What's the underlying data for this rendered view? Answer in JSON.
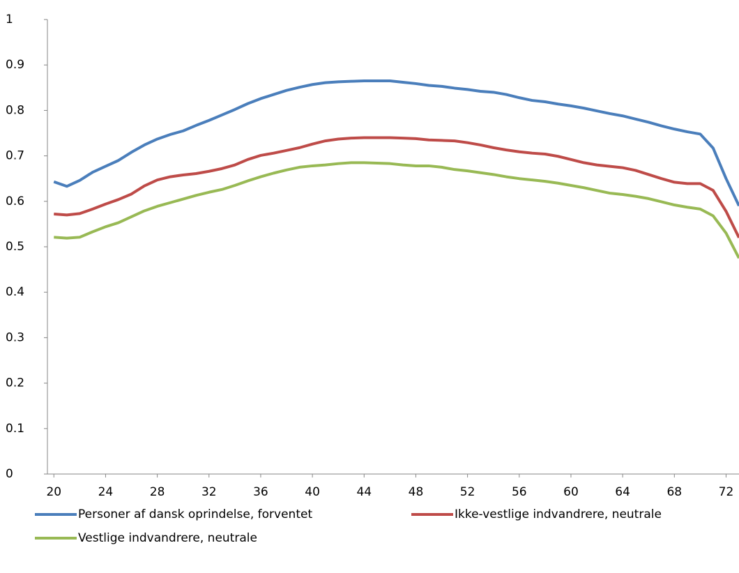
{
  "chart_data": {
    "type": "line",
    "x": [
      20,
      21,
      22,
      23,
      24,
      25,
      26,
      27,
      28,
      29,
      30,
      31,
      32,
      33,
      34,
      35,
      36,
      37,
      38,
      39,
      40,
      41,
      42,
      43,
      44,
      45,
      46,
      47,
      48,
      49,
      50,
      51,
      52,
      53,
      54,
      55,
      56,
      57,
      58,
      59,
      60,
      61,
      62,
      63,
      64,
      65,
      66,
      67,
      68,
      69,
      70,
      71,
      72,
      73
    ],
    "series": [
      {
        "name": "Personer af dansk oprindelse, forventet",
        "color": "#4a7ebb",
        "values": [
          0.643,
          0.633,
          0.646,
          0.664,
          0.677,
          0.69,
          0.708,
          0.724,
          0.737,
          0.747,
          0.755,
          0.767,
          0.778,
          0.79,
          0.802,
          0.815,
          0.826,
          0.835,
          0.844,
          0.851,
          0.857,
          0.861,
          0.863,
          0.864,
          0.865,
          0.865,
          0.865,
          0.862,
          0.859,
          0.855,
          0.853,
          0.849,
          0.846,
          0.842,
          0.84,
          0.835,
          0.828,
          0.822,
          0.819,
          0.814,
          0.81,
          0.805,
          0.799,
          0.793,
          0.788,
          0.781,
          0.774,
          0.766,
          0.759,
          0.753,
          0.748,
          0.717,
          0.65,
          0.59
        ]
      },
      {
        "name": "Ikke-vestlige indvandrere, neutrale",
        "color": "#be4b48",
        "values": [
          0.572,
          0.57,
          0.573,
          0.583,
          0.594,
          0.604,
          0.616,
          0.634,
          0.647,
          0.654,
          0.658,
          0.661,
          0.666,
          0.672,
          0.68,
          0.692,
          0.701,
          0.706,
          0.712,
          0.718,
          0.726,
          0.733,
          0.737,
          0.739,
          0.74,
          0.74,
          0.74,
          0.739,
          0.738,
          0.735,
          0.734,
          0.733,
          0.729,
          0.724,
          0.718,
          0.713,
          0.709,
          0.706,
          0.704,
          0.699,
          0.692,
          0.685,
          0.68,
          0.677,
          0.674,
          0.668,
          0.659,
          0.65,
          0.642,
          0.639,
          0.639,
          0.624,
          0.578,
          0.52
        ]
      },
      {
        "name": "Vestlige indvandrere, neutrale",
        "color": "#98b954",
        "values": [
          0.521,
          0.519,
          0.521,
          0.533,
          0.544,
          0.553,
          0.566,
          0.579,
          0.589,
          0.597,
          0.605,
          0.613,
          0.62,
          0.626,
          0.635,
          0.645,
          0.654,
          0.662,
          0.669,
          0.675,
          0.678,
          0.68,
          0.683,
          0.685,
          0.685,
          0.684,
          0.683,
          0.68,
          0.678,
          0.678,
          0.675,
          0.67,
          0.667,
          0.663,
          0.659,
          0.654,
          0.65,
          0.647,
          0.644,
          0.64,
          0.635,
          0.63,
          0.624,
          0.618,
          0.615,
          0.611,
          0.606,
          0.599,
          0.592,
          0.587,
          0.583,
          0.568,
          0.53,
          0.475
        ]
      }
    ],
    "xlim": [
      19.5,
      73
    ],
    "xticks": [
      20,
      24,
      28,
      32,
      36,
      40,
      44,
      48,
      52,
      56,
      60,
      64,
      68,
      72
    ],
    "ylim": [
      0,
      1
    ],
    "yticks": [
      0,
      0.1,
      0.2,
      0.3,
      0.4,
      0.5,
      0.6,
      0.7,
      0.8,
      0.9,
      1
    ],
    "grid": false,
    "legend": "bottom"
  }
}
